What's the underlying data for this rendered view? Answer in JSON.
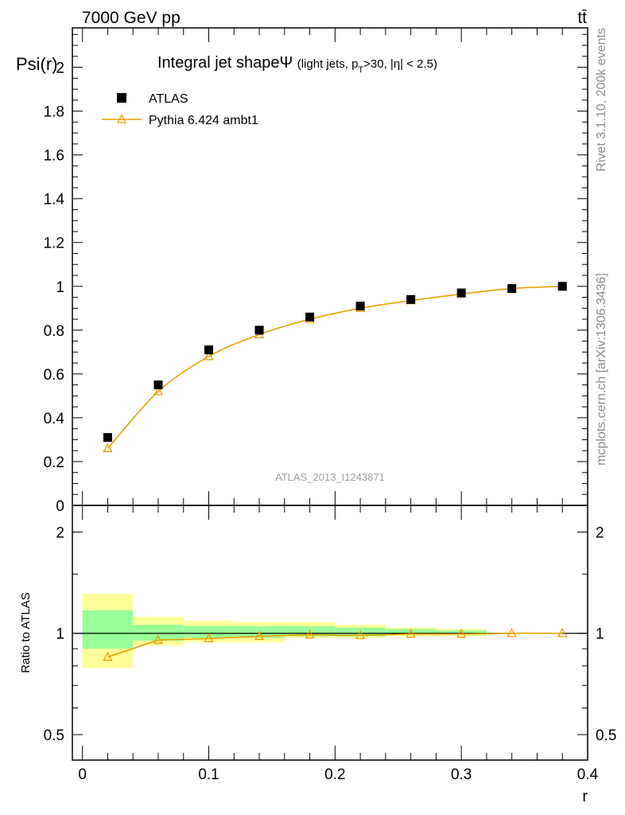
{
  "header": {
    "left": "7000 GeV pp",
    "right": "tt̄"
  },
  "side_labels": {
    "rivet": "Rivet 3.1.10,  200k events",
    "mcplots": "mcplots.cern.ch [arXiv:1306.3436]"
  },
  "chart_data": [
    {
      "type": "scatter",
      "title_main": "Integral jet shapeΨ",
      "title_sub": "(light jets, p",
      "title_sub_index": "T",
      "title_sub_tail": ">30, |η| < 2.5)",
      "ylabel": "Psi(r)",
      "xlabel": "",
      "watermark": "ATLAS_2013_I1243871",
      "xlim": [
        -0.008,
        0.4
      ],
      "ylim": [
        0,
        2.18
      ],
      "yticks": [
        "0",
        "0.2",
        "0.4",
        "0.6",
        "0.8",
        "1",
        "1.2",
        "1.4",
        "1.6",
        "1.8",
        "2"
      ],
      "legend": {
        "placement": "top-left",
        "data_label": "ATLAS",
        "mc_label": "Pythia 6.424 ambt1"
      },
      "colors": {
        "data": "#000000",
        "mc": "#e8a000"
      },
      "x": [
        0.02,
        0.06,
        0.1,
        0.14,
        0.18,
        0.22,
        0.26,
        0.3,
        0.34,
        0.38
      ],
      "series": [
        {
          "name": "ATLAS",
          "values": [
            0.31,
            0.55,
            0.71,
            0.8,
            0.86,
            0.91,
            0.94,
            0.97,
            0.99,
            1.0
          ]
        },
        {
          "name": "Pythia 6.424 ambt1",
          "values": [
            0.26,
            0.52,
            0.68,
            0.78,
            0.85,
            0.9,
            0.935,
            0.965,
            0.99,
            1.0
          ]
        }
      ]
    },
    {
      "type": "scatter",
      "ylabel": "Ratio to ATLAS",
      "xlabel": "r",
      "xlim": [
        -0.008,
        0.4
      ],
      "ylim": [
        0.42,
        2.4
      ],
      "log_y": true,
      "xticks": [
        "0",
        "0.1",
        "0.2",
        "0.3",
        "0.4"
      ],
      "yticks": [
        "0.5",
        "1",
        "2"
      ],
      "reference": 1,
      "colors": {
        "band_inner": "#99ff99",
        "band_outer": "#ffff99",
        "mc": "#e8a000"
      },
      "bins": [
        {
          "lo": 0.0,
          "hi": 0.04,
          "inner": [
            0.9,
            1.17
          ],
          "outer": [
            0.79,
            1.31
          ]
        },
        {
          "lo": 0.04,
          "hi": 0.08,
          "inner": [
            0.95,
            1.06
          ],
          "outer": [
            0.92,
            1.12
          ]
        },
        {
          "lo": 0.08,
          "hi": 0.12,
          "inner": [
            0.97,
            1.05
          ],
          "outer": [
            0.94,
            1.09
          ]
        },
        {
          "lo": 0.12,
          "hi": 0.16,
          "inner": [
            0.97,
            1.05
          ],
          "outer": [
            0.94,
            1.08
          ]
        },
        {
          "lo": 0.16,
          "hi": 0.2,
          "inner": [
            0.98,
            1.05
          ],
          "outer": [
            0.97,
            1.08
          ]
        },
        {
          "lo": 0.2,
          "hi": 0.24,
          "inner": [
            0.98,
            1.04
          ],
          "outer": [
            0.97,
            1.06
          ]
        },
        {
          "lo": 0.24,
          "hi": 0.28,
          "inner": [
            0.99,
            1.03
          ],
          "outer": [
            0.98,
            1.04
          ]
        },
        {
          "lo": 0.28,
          "hi": 0.32,
          "inner": [
            0.99,
            1.02
          ],
          "outer": [
            0.98,
            1.03
          ]
        },
        {
          "lo": 0.32,
          "hi": 0.36,
          "inner": [
            0.995,
            1.005
          ],
          "outer": [
            0.995,
            1.005
          ]
        },
        {
          "lo": 0.36,
          "hi": 0.4,
          "inner": [
            0.998,
            1.002
          ],
          "outer": [
            0.998,
            1.002
          ]
        }
      ],
      "x": [
        0.02,
        0.06,
        0.1,
        0.14,
        0.18,
        0.22,
        0.26,
        0.3,
        0.34,
        0.38
      ],
      "series": [
        {
          "name": "Pythia 6.424 ambt1",
          "values": [
            0.85,
            0.955,
            0.965,
            0.98,
            0.99,
            0.985,
            0.995,
            0.995,
            1.0,
            1.0
          ]
        }
      ]
    }
  ]
}
